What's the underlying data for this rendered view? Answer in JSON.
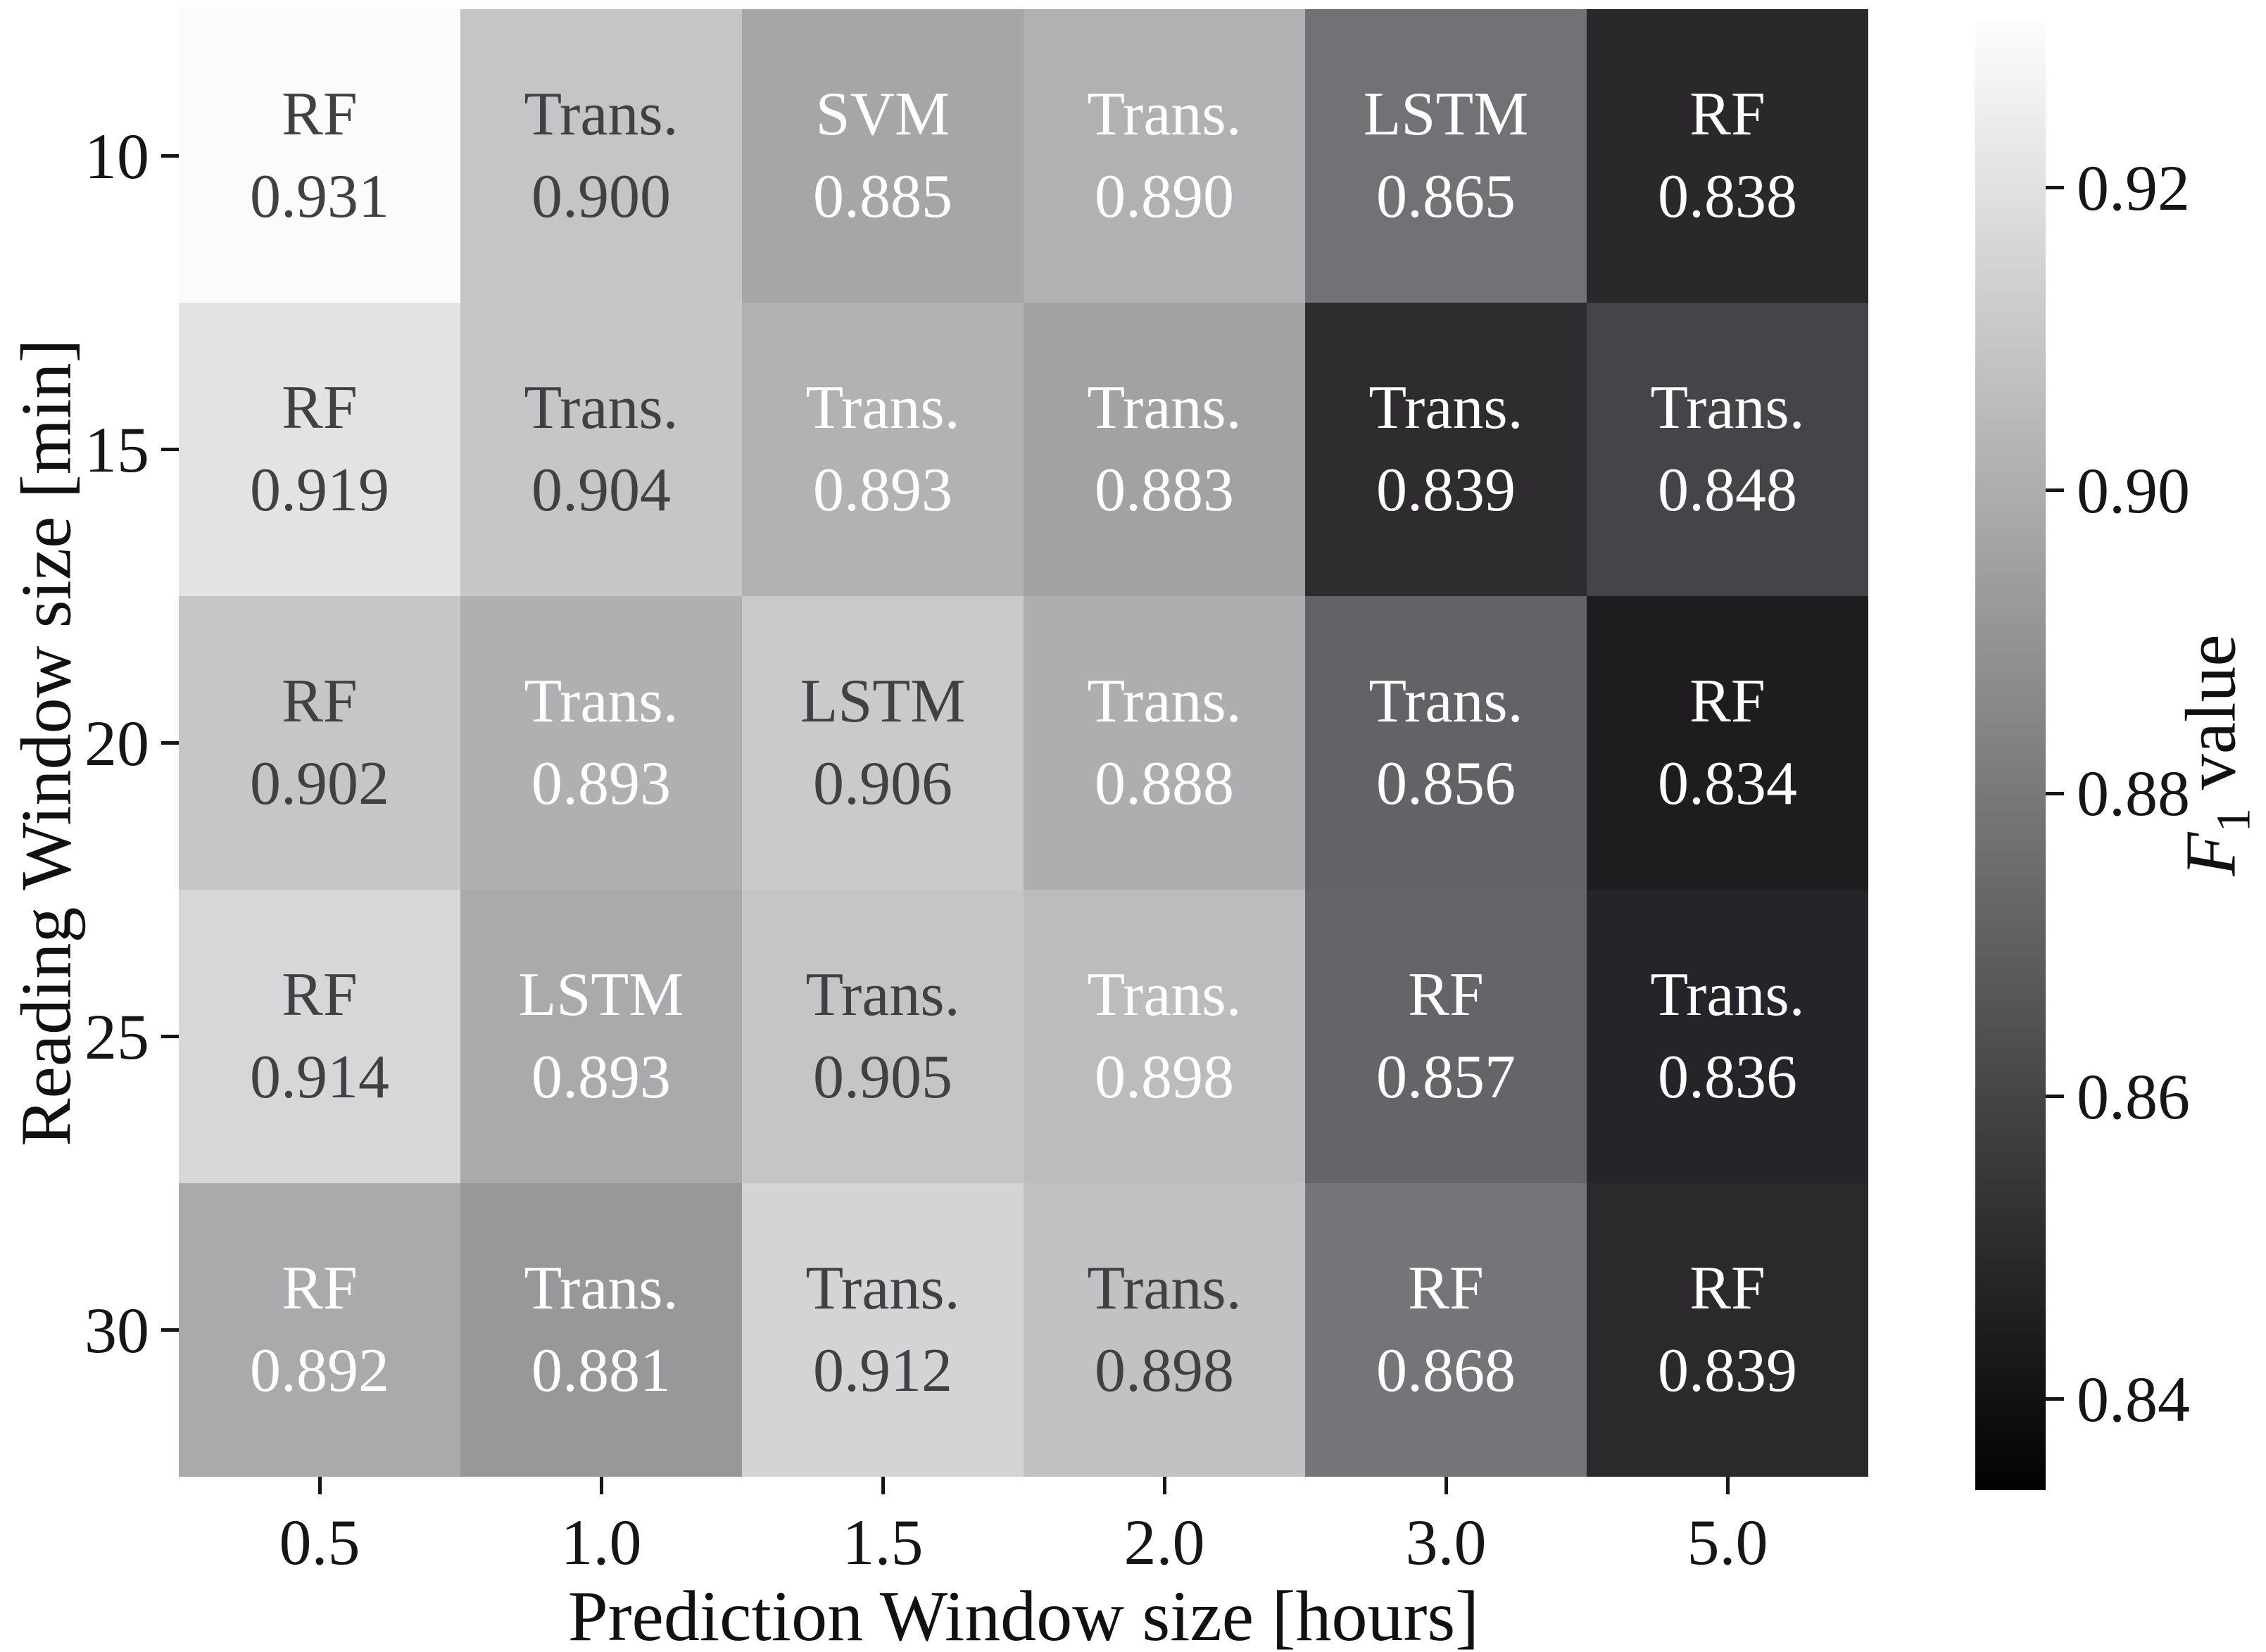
{
  "figure": {
    "background": "#ffffff",
    "text_dark": "#414144",
    "text_light": "#ffffff",
    "xlabel": "Prediction Window size [hours]",
    "ylabel": "Reading Window size [min]",
    "colorbar_label_f": "F",
    "colorbar_label_sub": "1",
    "colorbar_label_rest": " value"
  },
  "chart_data": {
    "type": "heatmap",
    "title": "",
    "xlabel": "Prediction Window size [hours]",
    "ylabel": "Reading Window size [min]",
    "x_categories": [
      "0.5",
      "1.0",
      "1.5",
      "2.0",
      "3.0",
      "5.0"
    ],
    "y_categories": [
      "10",
      "15",
      "20",
      "25",
      "30"
    ],
    "legend_position": "right-colorbar",
    "colorbar_label": "F1 value",
    "colorbar_range": [
      0.834,
      0.931
    ],
    "colorbar_ticks": [
      0.92,
      0.9,
      0.88,
      0.86,
      0.84
    ],
    "colormap": "grayscale, light = high F1",
    "grid": false,
    "cells": [
      [
        {
          "model": "RF",
          "value": "0.931",
          "color": "#fbfbfc",
          "text": "dark"
        },
        {
          "model": "Trans.",
          "value": "0.900",
          "color": "#c5c5c8",
          "text": "dark"
        },
        {
          "model": "SVM",
          "value": "0.885",
          "color": "#a6a6a9",
          "text": "white"
        },
        {
          "model": "Trans.",
          "value": "0.890",
          "color": "#b1b1b4",
          "text": "white"
        },
        {
          "model": "LSTM",
          "value": "0.865",
          "color": "#727276",
          "text": "white"
        },
        {
          "model": "RF",
          "value": "0.838",
          "color": "#2a282b",
          "text": "white"
        }
      ],
      [
        {
          "model": "RF",
          "value": "0.919",
          "color": "#e3e3e5",
          "text": "dark"
        },
        {
          "model": "Trans.",
          "value": "0.904",
          "color": "#c6c6c9",
          "text": "dark"
        },
        {
          "model": "Trans.",
          "value": "0.893",
          "color": "#b2b2b5",
          "text": "white"
        },
        {
          "model": "Trans.",
          "value": "0.883",
          "color": "#a2a2a5",
          "text": "white"
        },
        {
          "model": "Trans.",
          "value": "0.839",
          "color": "#2e2c2f",
          "text": "white"
        },
        {
          "model": "Trans.",
          "value": "0.848",
          "color": "#464448",
          "text": "white"
        }
      ],
      [
        {
          "model": "RF",
          "value": "0.902",
          "color": "#c6c6c8",
          "text": "dark"
        },
        {
          "model": "Trans.",
          "value": "0.893",
          "color": "#b0b0b3",
          "text": "white"
        },
        {
          "model": "LSTM",
          "value": "0.906",
          "color": "#cacacd",
          "text": "dark"
        },
        {
          "model": "Trans.",
          "value": "0.888",
          "color": "#aeaeb1",
          "text": "white"
        },
        {
          "model": "Trans.",
          "value": "0.856",
          "color": "#636266",
          "text": "white"
        },
        {
          "model": "RF",
          "value": "0.834",
          "color": "#1e1c1f",
          "text": "white"
        }
      ],
      [
        {
          "model": "RF",
          "value": "0.914",
          "color": "#d7d7d9",
          "text": "dark"
        },
        {
          "model": "LSTM",
          "value": "0.893",
          "color": "#aaaaad",
          "text": "white"
        },
        {
          "model": "Trans.",
          "value": "0.905",
          "color": "#c5c5c8",
          "text": "dark"
        },
        {
          "model": "Trans.",
          "value": "0.898",
          "color": "#bcbcbf",
          "text": "white"
        },
        {
          "model": "RF",
          "value": "0.857",
          "color": "#656468",
          "text": "white"
        },
        {
          "model": "Trans.",
          "value": "0.836",
          "color": "#262428",
          "text": "white"
        }
      ],
      [
        {
          "model": "RF",
          "value": "0.892",
          "color": "#aaaaad",
          "text": "white"
        },
        {
          "model": "Trans.",
          "value": "0.881",
          "color": "#98989b",
          "text": "white"
        },
        {
          "model": "Trans.",
          "value": "0.912",
          "color": "#d4d4d6",
          "text": "dark"
        },
        {
          "model": "Trans.",
          "value": "0.898",
          "color": "#c2c2c4",
          "text": "dark"
        },
        {
          "model": "RF",
          "value": "0.868",
          "color": "#757478",
          "text": "white"
        },
        {
          "model": "RF",
          "value": "0.839",
          "color": "#2b292c",
          "text": "white"
        }
      ]
    ]
  }
}
